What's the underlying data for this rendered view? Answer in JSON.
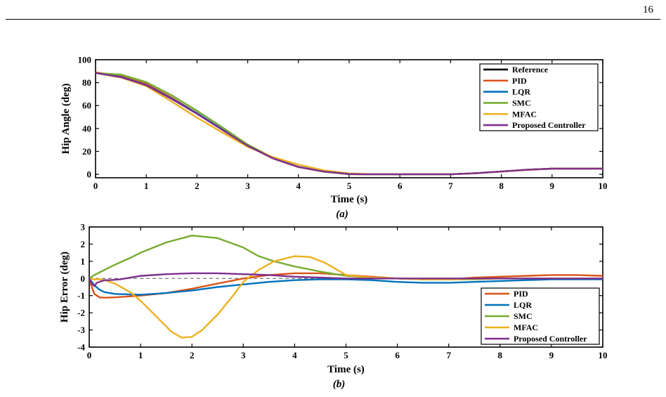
{
  "page": {
    "number": "16"
  },
  "colors": {
    "Reference": "#000000",
    "PID": "#d95319",
    "LQR": "#0072bd",
    "SMC": "#77ac30",
    "MFAC": "#edb120",
    "Proposed Controller": "#7e2f8e"
  },
  "chart_data": [
    {
      "type": "line",
      "caption": "(a)",
      "xlabel": "Time (s)",
      "ylabel": "Hip Angle (deg)",
      "xlim": [
        0,
        10
      ],
      "ylim": [
        -3,
        100
      ],
      "xticks": [
        0,
        1,
        2,
        3,
        4,
        5,
        6,
        7,
        8,
        9,
        10
      ],
      "yticks": [
        0,
        20,
        40,
        60,
        80,
        100
      ],
      "legend": [
        "Reference",
        "PID",
        "LQR",
        "SMC",
        "MFAC",
        "Proposed Controller"
      ],
      "legend_position": "top-right",
      "series": [
        {
          "name": "Reference",
          "x": [
            0,
            0.5,
            1,
            1.5,
            2,
            2.5,
            3,
            3.5,
            4,
            4.5,
            5,
            5.5,
            6,
            6.5,
            7,
            7.5,
            8,
            8.5,
            9,
            9.5,
            10
          ],
          "y": [
            88.5,
            85,
            78,
            66,
            53,
            39,
            25,
            14,
            6.5,
            2.5,
            0.3,
            0,
            0,
            0,
            0,
            1,
            2.5,
            4,
            5,
            5,
            5
          ]
        },
        {
          "name": "PID",
          "x": [
            0,
            0.5,
            1,
            1.5,
            2,
            2.5,
            3,
            3.5,
            4,
            4.5,
            5,
            5.5,
            6,
            6.5,
            7,
            7.5,
            8,
            8.5,
            9,
            9.5,
            10
          ],
          "y": [
            89,
            85.5,
            79,
            67,
            53.5,
            39,
            24.7,
            13.8,
            6.3,
            2.3,
            0.1,
            0,
            0,
            0,
            0,
            0.9,
            2.4,
            3.8,
            4.8,
            4.8,
            4.8
          ]
        },
        {
          "name": "LQR",
          "x": [
            0,
            0.5,
            1,
            1.5,
            2,
            2.5,
            3,
            3.5,
            4,
            4.5,
            5,
            5.5,
            6,
            6.5,
            7,
            7.5,
            8,
            8.5,
            9,
            9.5,
            10
          ],
          "y": [
            88.5,
            85,
            78,
            66.2,
            53.3,
            39.3,
            25.2,
            14.2,
            6.6,
            2.6,
            0.4,
            0,
            0,
            0,
            0,
            1,
            2.5,
            4,
            5,
            5,
            5
          ]
        },
        {
          "name": "SMC",
          "x": [
            0,
            0.5,
            1,
            1.5,
            2,
            2.5,
            3,
            3.5,
            4,
            4.5,
            5,
            5.5,
            6,
            6.5,
            7,
            7.5,
            8,
            8.5,
            9,
            9.5,
            10
          ],
          "y": [
            88.5,
            87,
            80.5,
            69,
            55.5,
            41,
            26,
            14.5,
            6.5,
            2.3,
            0.2,
            0,
            0,
            0,
            0,
            1,
            2.5,
            4,
            5,
            5,
            5
          ]
        },
        {
          "name": "MFAC",
          "x": [
            0,
            0.5,
            1,
            1.5,
            2,
            2.5,
            3,
            3.5,
            4,
            4.5,
            5,
            5.5,
            6,
            6.5,
            7,
            7.5,
            8,
            8.5,
            9,
            9.5,
            10
          ],
          "y": [
            88.5,
            84.5,
            77,
            63.5,
            49.5,
            36.5,
            24,
            15,
            8.5,
            3.5,
            0.8,
            0,
            0,
            0,
            0,
            1,
            2.5,
            4,
            5,
            5,
            5
          ]
        },
        {
          "name": "Proposed Controller",
          "x": [
            0,
            0.5,
            1,
            1.5,
            2,
            2.5,
            3,
            3.5,
            4,
            4.5,
            5,
            5.5,
            6,
            6.5,
            7,
            7.5,
            8,
            8.5,
            9,
            9.5,
            10
          ],
          "y": [
            88.5,
            84.8,
            77.8,
            65.8,
            52.8,
            38.8,
            24.9,
            13.9,
            6.4,
            2.4,
            0.3,
            0,
            0,
            0,
            0,
            1,
            2.5,
            4,
            5,
            5,
            5
          ]
        }
      ]
    },
    {
      "type": "line",
      "caption": "(b)",
      "xlabel": "Time (s)",
      "ylabel": "Hip Error (deg)",
      "xlim": [
        0,
        10
      ],
      "ylim": [
        -4,
        3
      ],
      "xticks": [
        0,
        1,
        2,
        3,
        4,
        5,
        6,
        7,
        8,
        9,
        10
      ],
      "yticks": [
        -4,
        -3,
        -2,
        -1,
        0,
        1,
        2,
        3
      ],
      "zero_line": true,
      "legend": [
        "PID",
        "LQR",
        "SMC",
        "MFAC",
        "Proposed Controller"
      ],
      "legend_position": "bottom-right",
      "series": [
        {
          "name": "PID",
          "x": [
            0,
            0.05,
            0.1,
            0.2,
            0.3,
            0.5,
            1,
            1.5,
            2,
            2.5,
            3,
            3.5,
            4,
            4.5,
            5,
            5.5,
            6,
            6.5,
            7,
            7.5,
            8,
            8.5,
            9,
            9.5,
            10
          ],
          "y": [
            0,
            -0.5,
            -0.9,
            -1.1,
            -1.12,
            -1.1,
            -1.0,
            -0.85,
            -0.6,
            -0.3,
            0,
            0.2,
            0.3,
            0.3,
            0.2,
            0.1,
            0,
            -0.05,
            -0.05,
            0.05,
            0.1,
            0.15,
            0.2,
            0.2,
            0.15
          ]
        },
        {
          "name": "LQR",
          "x": [
            0,
            0.1,
            0.2,
            0.3,
            0.5,
            1,
            1.5,
            2,
            2.5,
            3,
            3.5,
            4,
            4.5,
            5,
            5.5,
            6,
            6.5,
            7,
            7.5,
            8,
            8.5,
            9,
            9.5,
            10
          ],
          "y": [
            0,
            -0.4,
            -0.65,
            -0.8,
            -0.9,
            -0.95,
            -0.85,
            -0.7,
            -0.5,
            -0.35,
            -0.2,
            -0.1,
            -0.05,
            -0.05,
            -0.1,
            -0.2,
            -0.25,
            -0.25,
            -0.2,
            -0.15,
            -0.1,
            -0.05,
            -0.05,
            -0.05
          ]
        },
        {
          "name": "SMC",
          "x": [
            0,
            0.1,
            0.2,
            0.3,
            0.5,
            0.8,
            1,
            1.5,
            2,
            2.5,
            3,
            3.3,
            3.6,
            4,
            4.5,
            5,
            5.5,
            6,
            6.5,
            7,
            7.5,
            8,
            8.5,
            9,
            9.5,
            10
          ],
          "y": [
            0,
            0.2,
            0.35,
            0.5,
            0.8,
            1.2,
            1.5,
            2.1,
            2.5,
            2.35,
            1.8,
            1.3,
            1.0,
            0.7,
            0.4,
            0.15,
            0.05,
            0,
            -0.05,
            -0.05,
            -0.05,
            0,
            0,
            0,
            0,
            0
          ]
        },
        {
          "name": "MFAC",
          "x": [
            0,
            0.1,
            0.2,
            0.3,
            0.5,
            0.8,
            1,
            1.3,
            1.6,
            1.8,
            2,
            2.2,
            2.5,
            2.8,
            3,
            3.3,
            3.6,
            4,
            4.3,
            4.6,
            5,
            5.5,
            6,
            6.5,
            7,
            8,
            9,
            10
          ],
          "y": [
            0,
            -0.05,
            -0.05,
            -0.1,
            -0.3,
            -0.8,
            -1.3,
            -2.2,
            -3.1,
            -3.45,
            -3.4,
            -3.0,
            -2.1,
            -1.0,
            -0.2,
            0.5,
            1.0,
            1.3,
            1.25,
            0.9,
            0.2,
            0.05,
            0,
            -0.05,
            -0.05,
            0,
            0,
            0
          ]
        },
        {
          "name": "Proposed Controller",
          "x": [
            0,
            0.05,
            0.1,
            0.15,
            0.2,
            0.3,
            0.4,
            0.6,
            1,
            1.5,
            2,
            2.5,
            3,
            3.5,
            4,
            4.5,
            5,
            5.5,
            6,
            6.5,
            7,
            8,
            9,
            10
          ],
          "y": [
            0,
            -0.3,
            -0.45,
            -0.25,
            -0.2,
            -0.1,
            -0.1,
            -0.05,
            0.15,
            0.25,
            0.3,
            0.3,
            0.25,
            0.2,
            0.1,
            0.05,
            0,
            0,
            0,
            0,
            0,
            0,
            0,
            0
          ]
        }
      ]
    }
  ]
}
